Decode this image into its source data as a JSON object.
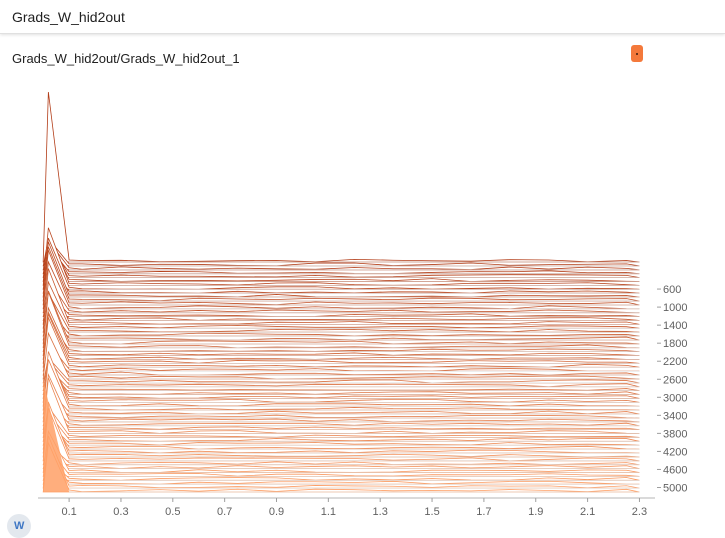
{
  "section": {
    "title": "Grads_W_hid2out"
  },
  "card": {
    "title": "Grads_W_hid2out/Grads_W_hid2out_1"
  },
  "colors": {
    "accent": "#f4793b",
    "histogram_dark": "#b23c17",
    "histogram_light": "#ffa066"
  },
  "chart_data": {
    "type": "histogram",
    "mode": "offset",
    "x_ticks": [
      "0.1",
      "0.3",
      "0.5",
      "0.7",
      "0.9",
      "1.1",
      "1.3",
      "1.5",
      "1.7",
      "1.9",
      "2.1",
      "2.3"
    ],
    "x_values": [
      0.1,
      0.3,
      0.5,
      0.7,
      0.9,
      1.1,
      1.3,
      1.5,
      1.7,
      1.9,
      2.1,
      2.3
    ],
    "xlim": [
      -0.02,
      2.36
    ],
    "step_ticks": [
      "600",
      "1000",
      "1400",
      "1800",
      "2200",
      "2600",
      "3000",
      "3400",
      "3800",
      "4200",
      "4600",
      "5000"
    ],
    "step_values": [
      600,
      1000,
      1400,
      1800,
      2200,
      2600,
      3000,
      3400,
      3800,
      4200,
      4600,
      5000
    ],
    "step_range": [
      0,
      5100
    ],
    "peak_value": 0.05
  }
}
